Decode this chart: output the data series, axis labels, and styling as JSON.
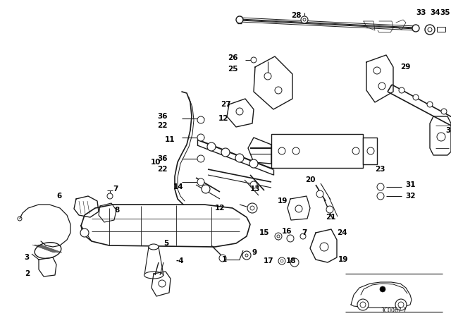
{
  "bg_color": "#ffffff",
  "line_color": "#1a1a1a",
  "text_color": "#000000",
  "diagram_id": "3C0067.7",
  "figsize": [
    6.4,
    4.48
  ],
  "dpi": 100
}
